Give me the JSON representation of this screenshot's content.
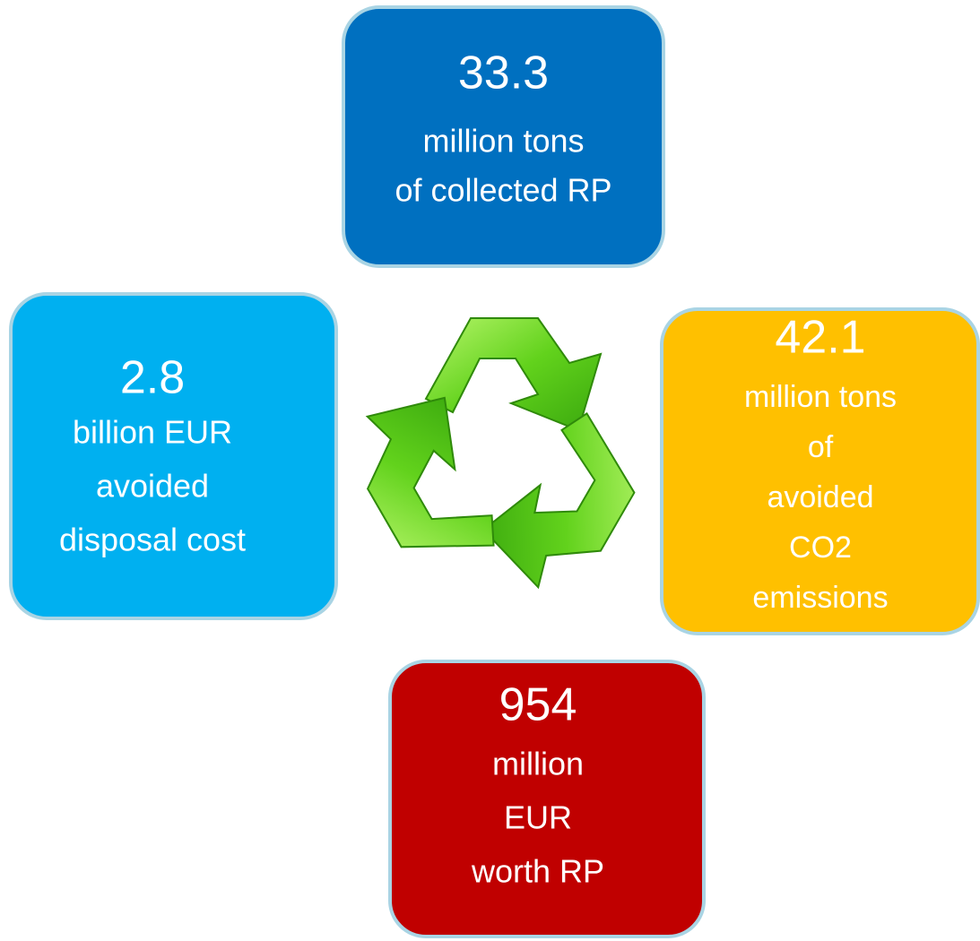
{
  "boxes": [
    {
      "value": 33.3,
      "lines": [
        "million tons",
        "of collected RP"
      ]
    },
    {
      "value": 2.8,
      "lines": [
        "billion EUR",
        "avoided",
        "disposal cost"
      ]
    },
    {
      "value": 42.1,
      "lines": [
        "million tons",
        "of",
        "avoided",
        "CO2",
        "emissions"
      ]
    },
    {
      "value": 954,
      "lines": [
        "million",
        "EUR",
        "worth RP"
      ]
    }
  ]
}
